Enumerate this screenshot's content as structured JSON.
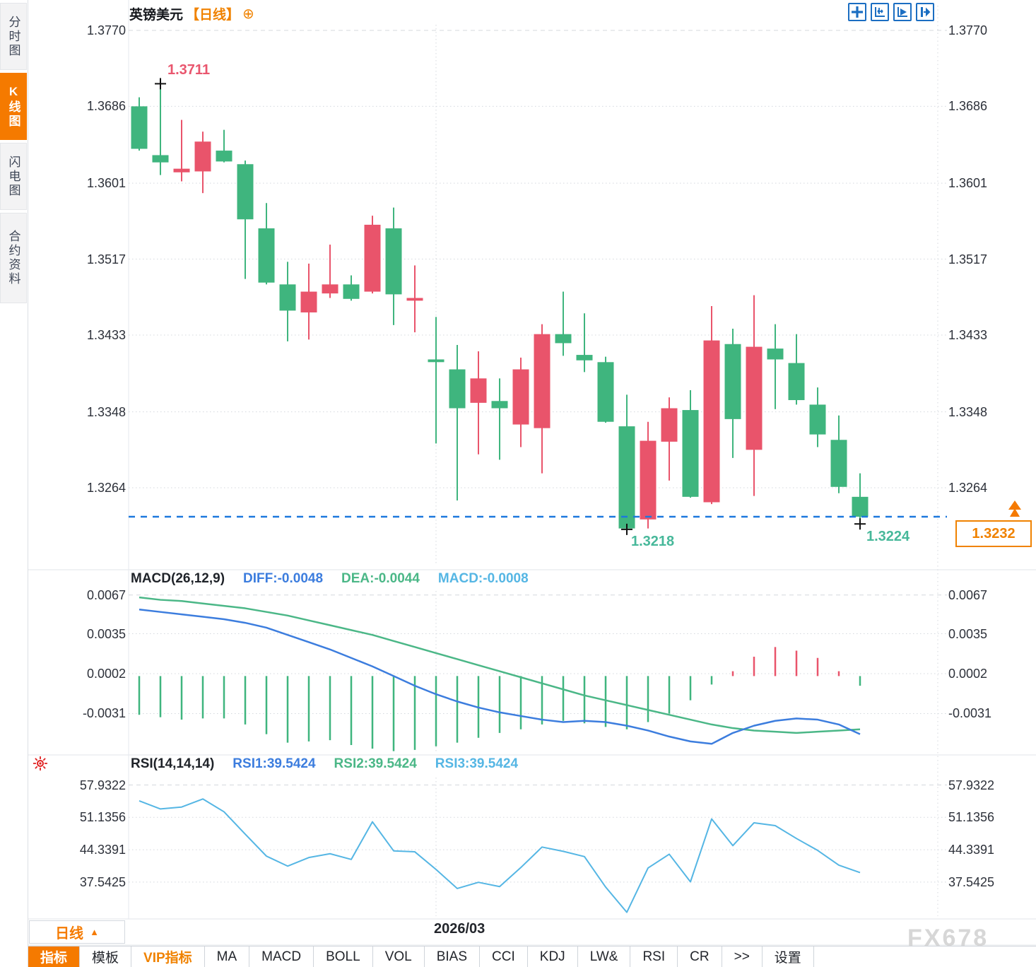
{
  "header": {
    "title": "英镑美元",
    "period_tag": "【日线】"
  },
  "sidebar": {
    "items": [
      {
        "label": "分时图",
        "active": false
      },
      {
        "label": "K线图",
        "active": true
      },
      {
        "label": "闪电图",
        "active": false
      },
      {
        "label": "合约资料",
        "active": false
      }
    ]
  },
  "top_icons": [
    "crosshair-icon",
    "fit-axis-icon",
    "play-axis-icon",
    "pan-right-icon"
  ],
  "bottom": {
    "period_label": "日线",
    "date_label": "2026/03"
  },
  "watermark": "FX678",
  "toolbar": {
    "buttons": [
      {
        "label": "指标",
        "style": "active"
      },
      {
        "label": "模板",
        "style": "normal"
      },
      {
        "label": "VIP指标",
        "style": "vip"
      },
      {
        "label": "MA",
        "style": "normal"
      },
      {
        "label": "MACD",
        "style": "normal"
      },
      {
        "label": "BOLL",
        "style": "normal"
      },
      {
        "label": "VOL",
        "style": "normal"
      },
      {
        "label": "BIAS",
        "style": "normal"
      },
      {
        "label": "CCI",
        "style": "normal"
      },
      {
        "label": "KDJ",
        "style": "normal"
      },
      {
        "label": "LW&",
        "style": "normal"
      },
      {
        "label": "RSI",
        "style": "normal"
      },
      {
        "label": "CR",
        "style": "normal"
      },
      {
        "label": ">>",
        "style": "normal"
      },
      {
        "label": "设置",
        "style": "normal"
      }
    ]
  },
  "colors": {
    "up": "#3fb57e",
    "down": "#e9546b",
    "diff_line": "#3c7dde",
    "dea_line": "#4bb787",
    "rsi_line": "#55b6e4",
    "current_line": "#1c78dd",
    "accent_orange": "#f57a00",
    "label_teal": "#47b89a",
    "label_pink": "#e9566e",
    "grid": "#d4d8de",
    "icon_blue": "#1b6ec2",
    "sun_red": "#e02020"
  },
  "chart_data": {
    "type": "candlestick",
    "symbol": "英镑美元",
    "timeframe": "日线",
    "legend_position": "top-left",
    "grid": true,
    "x_axis": {
      "month_label": "2026/03",
      "month_line_index": 14
    },
    "price_axis_ticks": [
      "1.3770",
      "1.3686",
      "1.3601",
      "1.3517",
      "1.3433",
      "1.3348",
      "1.3264"
    ],
    "price_range": [
      1.3218,
      1.377
    ],
    "current_price": "1.3232",
    "annotations": {
      "high_label": "1.3711",
      "high_index": 1,
      "low_label": "1.3218",
      "low_index": 23,
      "recent_low_label": "1.3224",
      "recent_low_index": 34
    },
    "candles": [
      [
        1.3639,
        1.3696,
        1.3637,
        1.3686
      ],
      [
        1.3624,
        1.3711,
        1.361,
        1.3632
      ],
      [
        1.3617,
        1.3671,
        1.3603,
        1.3613
      ],
      [
        1.3647,
        1.3658,
        1.359,
        1.3614
      ],
      [
        1.3625,
        1.366,
        1.3624,
        1.3637
      ],
      [
        1.3561,
        1.3626,
        1.3495,
        1.3622
      ],
      [
        1.3491,
        1.3579,
        1.3489,
        1.3551
      ],
      [
        1.346,
        1.3514,
        1.3426,
        1.3489
      ],
      [
        1.3481,
        1.3512,
        1.3428,
        1.3458
      ],
      [
        1.3489,
        1.3533,
        1.3474,
        1.3479
      ],
      [
        1.3473,
        1.3499,
        1.3471,
        1.3489
      ],
      [
        1.3555,
        1.3565,
        1.3479,
        1.3481
      ],
      [
        1.3478,
        1.3574,
        1.3444,
        1.3551
      ],
      [
        1.3474,
        1.351,
        1.3436,
        1.3471
      ],
      [
        1.3403,
        1.3453,
        1.3313,
        1.3406
      ],
      [
        1.3352,
        1.3422,
        1.325,
        1.3395
      ],
      [
        1.3385,
        1.3415,
        1.3301,
        1.3358
      ],
      [
        1.3352,
        1.3385,
        1.3295,
        1.336
      ],
      [
        1.3395,
        1.3408,
        1.3309,
        1.3334
      ],
      [
        1.3434,
        1.3445,
        1.328,
        1.333
      ],
      [
        1.3424,
        1.3481,
        1.341,
        1.3434
      ],
      [
        1.3405,
        1.3457,
        1.3392,
        1.3411
      ],
      [
        1.3337,
        1.3409,
        1.3336,
        1.3403
      ],
      [
        1.3219,
        1.3367,
        1.3218,
        1.3332
      ],
      [
        1.3316,
        1.3337,
        1.3219,
        1.3229
      ],
      [
        1.3352,
        1.3364,
        1.3272,
        1.3315
      ],
      [
        1.3254,
        1.3372,
        1.3253,
        1.335
      ],
      [
        1.3427,
        1.3465,
        1.3246,
        1.3248
      ],
      [
        1.334,
        1.344,
        1.3297,
        1.3423
      ],
      [
        1.342,
        1.3477,
        1.3255,
        1.3306
      ],
      [
        1.3406,
        1.3445,
        1.3351,
        1.3418
      ],
      [
        1.3361,
        1.3434,
        1.3356,
        1.3402
      ],
      [
        1.3323,
        1.3375,
        1.3309,
        1.3356
      ],
      [
        1.3265,
        1.3344,
        1.3258,
        1.3317
      ],
      [
        1.3232,
        1.328,
        1.3224,
        1.3254
      ]
    ],
    "macd": {
      "label": "MACD(26,12,9)",
      "diff_label": "DIFF:-0.0048",
      "dea_label": "DEA:-0.0044",
      "macd_label": "MACD:-0.0008",
      "axis_ticks": [
        "0.0067",
        "0.0035",
        "0.0002",
        "-0.0031"
      ],
      "diff": [
        0.0055,
        0.0053,
        0.0051,
        0.0049,
        0.0047,
        0.0044,
        0.004,
        0.0034,
        0.0028,
        0.0022,
        0.0015,
        0.0008,
        0.0,
        -0.0008,
        -0.0015,
        -0.0021,
        -0.0026,
        -0.003,
        -0.0033,
        -0.0036,
        -0.0038,
        -0.0037,
        -0.0038,
        -0.0041,
        -0.0045,
        -0.005,
        -0.0054,
        -0.0056,
        -0.0047,
        -0.0041,
        -0.0037,
        -0.0035,
        -0.0036,
        -0.004,
        -0.0048
      ],
      "dea": [
        0.0065,
        0.0063,
        0.0062,
        0.006,
        0.0058,
        0.0056,
        0.0053,
        0.005,
        0.0046,
        0.0042,
        0.0038,
        0.0034,
        0.0029,
        0.0024,
        0.0019,
        0.0014,
        0.0009,
        0.0004,
        -0.0001,
        -0.0006,
        -0.0011,
        -0.0016,
        -0.002,
        -0.0024,
        -0.0028,
        -0.0032,
        -0.0036,
        -0.004,
        -0.0043,
        -0.0045,
        -0.0046,
        -0.0047,
        -0.0046,
        -0.0045,
        -0.0044
      ],
      "hist": [
        -0.0032,
        -0.0034,
        -0.0036,
        -0.0035,
        -0.0035,
        -0.004,
        -0.0048,
        -0.0055,
        -0.0054,
        -0.0053,
        -0.0057,
        -0.006,
        -0.0062,
        -0.0061,
        -0.0058,
        -0.0055,
        -0.0051,
        -0.0047,
        -0.0044,
        -0.004,
        -0.0037,
        -0.0039,
        -0.0042,
        -0.0044,
        -0.0038,
        -0.0031,
        -0.002,
        -0.0007,
        0.0004,
        0.0016,
        0.0024,
        0.0021,
        0.0015,
        0.0004,
        -0.0008
      ]
    },
    "rsi": {
      "label": "RSI(14,14,14)",
      "rsi1_label": "RSI1:39.5424",
      "rsi2_label": "RSI2:39.5424",
      "rsi3_label": "RSI3:39.5424",
      "axis_ticks": [
        "57.9322",
        "51.1356",
        "44.3391",
        "37.5425"
      ],
      "values": [
        54.6,
        52.9,
        53.3,
        55.0,
        52.3,
        47.6,
        43.0,
        40.9,
        42.7,
        43.5,
        42.3,
        50.2,
        44.1,
        43.9,
        40.2,
        36.2,
        37.5,
        36.6,
        40.6,
        44.9,
        44.0,
        42.9,
        36.5,
        31.2,
        40.5,
        43.4,
        37.6,
        50.8,
        45.2,
        50.0,
        49.4,
        46.7,
        44.2,
        41.1,
        39.5424
      ]
    }
  }
}
